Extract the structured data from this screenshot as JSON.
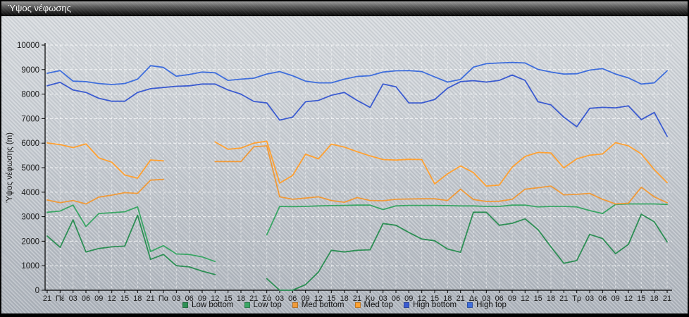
{
  "window": {
    "title": "Ύψος νέφωσης"
  },
  "chart_data": {
    "type": "line",
    "title": "Ύψος νέφωσης",
    "xlabel": "",
    "ylabel": "Ύψος νέφωσης (m)",
    "ylim": [
      0,
      10000
    ],
    "ytick_step": 1000,
    "grid": true,
    "grid_style": "white-dashed",
    "legend_position": "bottom",
    "categories": [
      "21",
      "Πέ",
      "03",
      "06",
      "09",
      "12",
      "15",
      "18",
      "21",
      "Πα",
      "03",
      "06",
      "09",
      "12",
      "15",
      "18",
      "21",
      "Σά",
      "03",
      "06",
      "09",
      "12",
      "15",
      "18",
      "21",
      "Κυ",
      "03",
      "06",
      "09",
      "12",
      "15",
      "18",
      "21",
      "Δε",
      "03",
      "06",
      "09",
      "12",
      "15",
      "18",
      "21",
      "Τρ",
      "03",
      "06",
      "09",
      "12",
      "15",
      "18",
      "21"
    ],
    "series": [
      {
        "name": "Low bottom",
        "color": "#2e8f55",
        "values": [
          2210,
          1750,
          2870,
          1560,
          1700,
          1770,
          1800,
          3060,
          1260,
          1460,
          1000,
          950,
          780,
          640,
          null,
          null,
          null,
          470,
          0,
          0,
          230,
          740,
          1630,
          1560,
          1630,
          1650,
          2720,
          2650,
          2360,
          2090,
          2020,
          1680,
          1550,
          3180,
          3180,
          2650,
          2730,
          2910,
          2470,
          1770,
          1100,
          1210,
          2280,
          2110,
          1490,
          1870,
          3100,
          2790,
          1970
        ]
      },
      {
        "name": "Low top",
        "color": "#3aa665",
        "values": [
          3180,
          3230,
          3470,
          2600,
          3130,
          3160,
          3200,
          3400,
          1580,
          1820,
          1480,
          1460,
          1360,
          1170,
          null,
          null,
          null,
          2260,
          3420,
          3410,
          3420,
          3440,
          3450,
          3460,
          3470,
          3470,
          3290,
          3440,
          3460,
          3460,
          3460,
          3450,
          3440,
          3440,
          3420,
          3420,
          3470,
          3470,
          3400,
          3420,
          3420,
          3400,
          3250,
          3130,
          3500,
          3520,
          3520,
          3520,
          3500
        ]
      },
      {
        "name": "Med bottom",
        "color": "#ef9a3a",
        "values": [
          3680,
          3570,
          3660,
          3520,
          3800,
          3880,
          3980,
          3950,
          4490,
          4520,
          null,
          null,
          null,
          5250,
          5250,
          5250,
          5850,
          5890,
          3810,
          3710,
          3760,
          3810,
          3660,
          3590,
          3780,
          3660,
          3650,
          3710,
          3720,
          3730,
          3730,
          3660,
          4120,
          3700,
          3620,
          3630,
          3710,
          4120,
          4180,
          4250,
          3890,
          3910,
          3950,
          3710,
          3520,
          3550,
          4200,
          3810,
          3570
        ]
      },
      {
        "name": "Med top",
        "color": "#ffa132",
        "values": [
          6010,
          5940,
          5820,
          5970,
          5400,
          5220,
          4700,
          4570,
          5310,
          5280,
          null,
          null,
          null,
          6050,
          5750,
          5800,
          6000,
          6080,
          4370,
          4680,
          5550,
          5360,
          5960,
          5840,
          5650,
          5480,
          5330,
          5310,
          5340,
          5330,
          4340,
          4750,
          5070,
          4800,
          4250,
          4290,
          5020,
          5460,
          5620,
          5600,
          4990,
          5360,
          5510,
          5560,
          6020,
          5890,
          5560,
          4920,
          4390
        ]
      },
      {
        "name": "High bottom",
        "color": "#3b5bd0",
        "values": [
          8340,
          8480,
          8170,
          8070,
          7830,
          7710,
          7710,
          8070,
          8220,
          8270,
          8320,
          8340,
          8410,
          8410,
          8170,
          8000,
          7700,
          7640,
          6940,
          7060,
          7690,
          7740,
          7950,
          8070,
          7740,
          7460,
          8410,
          8300,
          7640,
          7640,
          7780,
          8240,
          8510,
          8550,
          8490,
          8560,
          8780,
          8560,
          7690,
          7560,
          7060,
          6670,
          7420,
          7460,
          7440,
          7520,
          6960,
          7250,
          6280
        ]
      },
      {
        "name": "High top",
        "color": "#3f6edc",
        "values": [
          8850,
          8960,
          8530,
          8510,
          8430,
          8390,
          8430,
          8610,
          9160,
          9090,
          8730,
          8800,
          8900,
          8870,
          8560,
          8610,
          8650,
          8820,
          8920,
          8750,
          8530,
          8460,
          8460,
          8610,
          8720,
          8750,
          8900,
          8950,
          8960,
          8920,
          8700,
          8490,
          8600,
          9100,
          9240,
          9270,
          9290,
          9270,
          9010,
          8900,
          8820,
          8830,
          8980,
          9040,
          8820,
          8660,
          8410,
          8460,
          8950
        ]
      }
    ]
  }
}
